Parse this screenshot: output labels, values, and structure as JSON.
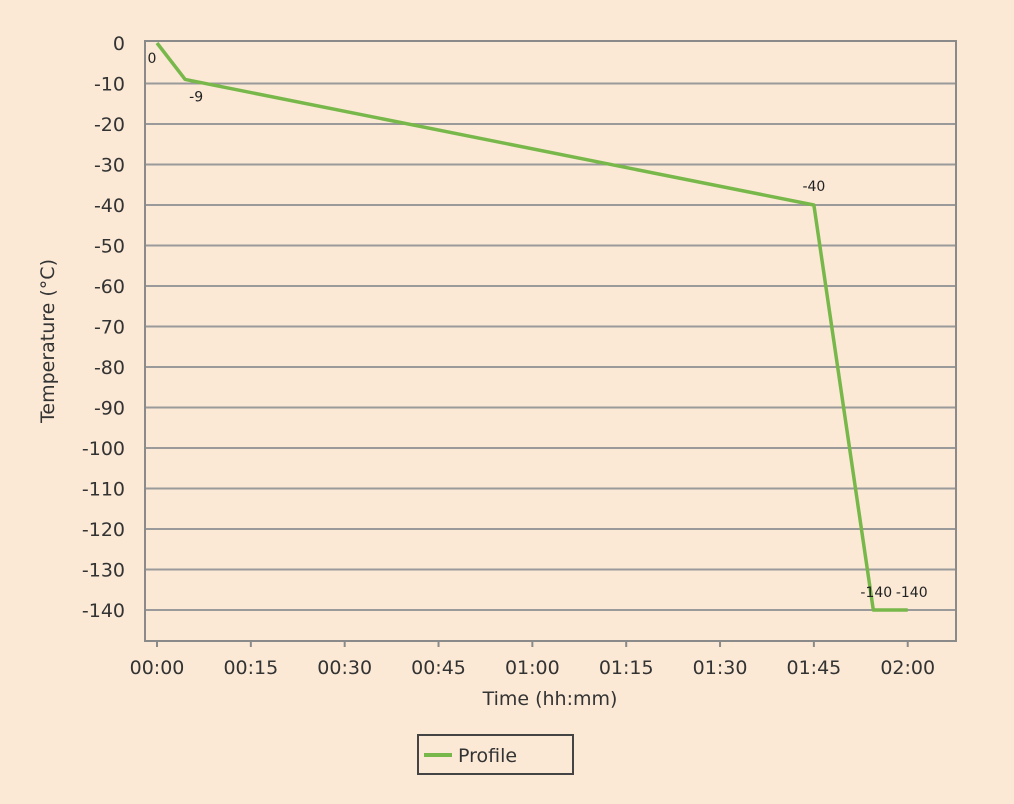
{
  "chart_data": {
    "type": "line",
    "xlabel": "Time (hh:mm)",
    "ylabel": "Temperature (°C)",
    "xlim": [
      0,
      125
    ],
    "ylim": [
      -145,
      0
    ],
    "x_ticks": [
      "00:00",
      "00:15",
      "00:30",
      "00:45",
      "01:00",
      "01:15",
      "01:30",
      "01:45",
      "02:00"
    ],
    "y_ticks": [
      "0",
      "-10",
      "-20",
      "-30",
      "-40",
      "-50",
      "-60",
      "-70",
      "-80",
      "-90",
      "-100",
      "-110",
      "-120",
      "-130",
      "-140"
    ],
    "grid": "horizontal",
    "legend_position": "bottom",
    "series": [
      {
        "name": "Profile",
        "color": "#78b84a",
        "x": [
          "00:00",
          "00:04.5",
          "01:45",
          "01:54.5",
          "02:00"
        ],
        "y": [
          0,
          -9,
          -40,
          -140,
          -140
        ]
      }
    ],
    "point_labels": [
      "0",
      "-9",
      "-40",
      "-140",
      "-140"
    ]
  }
}
